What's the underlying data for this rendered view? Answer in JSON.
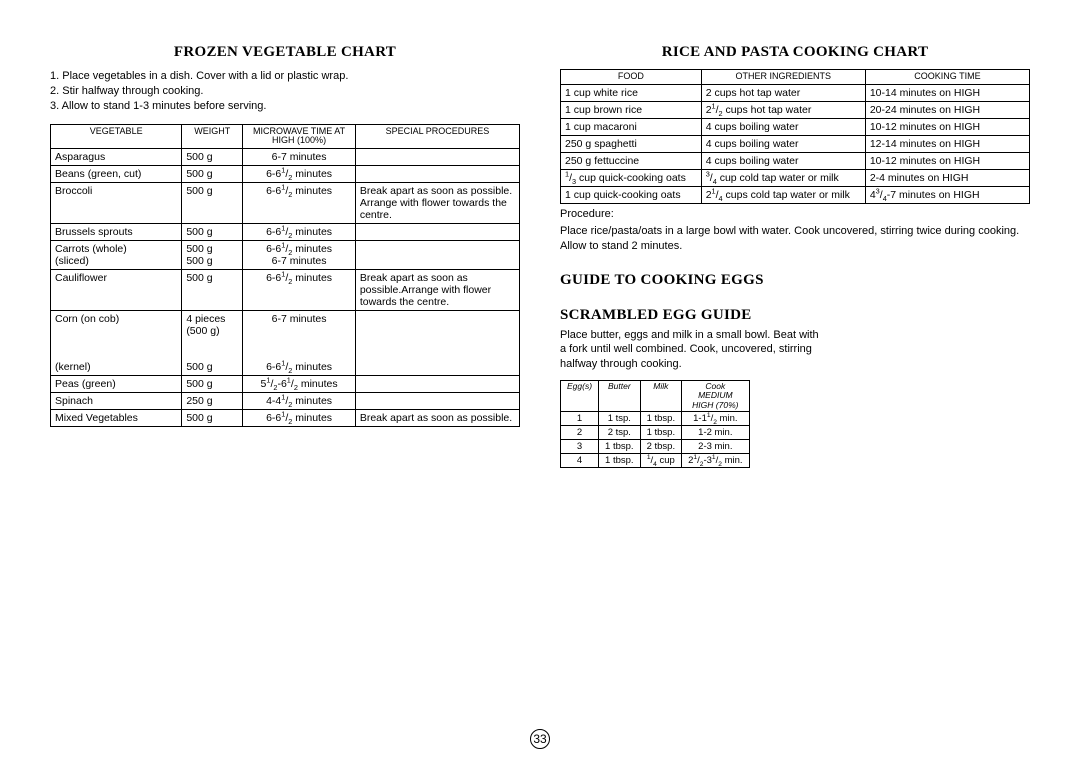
{
  "page_number": "33",
  "left": {
    "title": "FROZEN VEGETABLE CHART",
    "instructions": [
      "1. Place vegetables in a dish. Cover with a lid or plastic wrap.",
      "2. Stir halfway through cooking.",
      "3. Allow to stand 1-3 minutes before serving."
    ],
    "headers": [
      "VEGETABLE",
      "WEIGHT",
      "MICROWAVE TIME AT HIGH (100%)",
      "SPECIAL PROCEDURES"
    ],
    "rows": [
      [
        "Asparagus",
        "500 g",
        "6-7  minutes",
        ""
      ],
      [
        "Beans (green, cut)",
        "500 g",
        "6-6¹/₂ minutes",
        ""
      ],
      [
        "Broccoli",
        "500 g",
        "6-6¹/₂ minutes",
        "Break apart as soon as possible. Arrange with flower towards the centre."
      ],
      [
        "Brussels sprouts",
        "500 g",
        "6-6¹/₂ minutes",
        ""
      ],
      [
        "Carrots (whole)\n            (sliced)",
        "500 g\n500 g",
        "6-6¹/₂ minutes\n6-7 minutes",
        ""
      ],
      [
        "Cauliflower",
        "500 g",
        "6-6¹/₂ minutes",
        "Break apart as soon as possible.Arrange with flower towards the centre."
      ],
      [
        "Corn (on cob)\n\n\n\n           (kernel)",
        "4 pieces\n(500 g)\n\n\n500 g",
        "6-7 minutes\n\n\n\n6-6¹/₂ minutes",
        ""
      ],
      [
        "Peas (green)",
        "500 g",
        "5¹/₂-6¹/₂ minutes",
        ""
      ],
      [
        "Spinach",
        "250 g",
        "4-4¹/₂ minutes",
        ""
      ],
      [
        "Mixed Vegetables",
        "500 g",
        "6-6¹/₂ minutes",
        "Break apart as soon as possible."
      ]
    ]
  },
  "right": {
    "rice_title": "RICE AND PASTA COOKING CHART",
    "rice_headers": [
      "FOOD",
      "OTHER INGREDIENTS",
      "COOKING TIME"
    ],
    "rice_rows": [
      [
        "1 cup white rice",
        "2 cups hot tap water",
        "10-14 minutes on HIGH"
      ],
      [
        "1 cup brown rice",
        "2¹/₂ cups hot tap water",
        "20-24 minutes on HIGH"
      ],
      [
        "1 cup macaroni",
        "4 cups boiling water",
        "10-12 minutes on HIGH"
      ],
      [
        "250 g spaghetti",
        "4 cups boiling water",
        "12-14 minutes on HIGH"
      ],
      [
        "250 g fettuccine",
        "4 cups boiling water",
        "10-12 minutes on HIGH"
      ],
      [
        "¹/₃ cup quick-cooking oats",
        "³/₄ cup cold tap water or milk",
        "2-4 minutes on HIGH"
      ],
      [
        "1 cup quick-cooking oats",
        "2¹/₄ cups cold tap water or milk",
        "4³/₄-7 minutes on HIGH"
      ]
    ],
    "procedure_label": "Procedure:",
    "procedure_text": "Place rice/pasta/oats in a large bowl with water. Cook uncovered, stirring twice during cooking. Allow to stand 2 minutes.",
    "eggs_title1": "GUIDE TO COOKING EGGS",
    "eggs_title2": "SCRAMBLED EGG GUIDE",
    "eggs_intro": "Place butter, eggs and milk in a small bowl. Beat with a fork until well combined. Cook, uncovered, stirring halfway through cooking.",
    "eggs_headers": [
      "Egg(s)",
      "Butter",
      "Milk",
      "Cook MEDIUM HIGH (70%)"
    ],
    "eggs_rows": [
      [
        "1",
        "1 tsp.",
        "1 tbsp.",
        "1-1¹/₂ min."
      ],
      [
        "2",
        "2 tsp.",
        "1 tbsp.",
        "1-2 min."
      ],
      [
        "3",
        "1 tbsp.",
        "2 tbsp.",
        "2-3 min."
      ],
      [
        "4",
        "1 tbsp.",
        "¹/₄ cup",
        "2¹/₂-3¹/₂ min."
      ]
    ]
  }
}
